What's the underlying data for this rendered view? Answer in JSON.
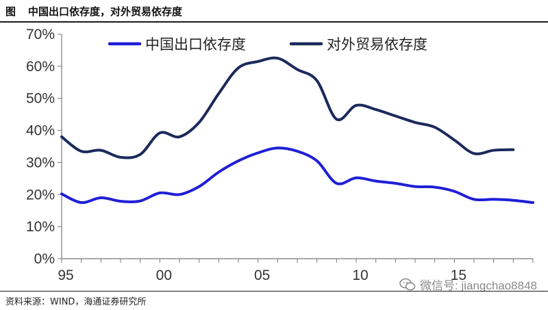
{
  "figure": {
    "label": "图",
    "title": "中国出口依存度，对外贸易依存度"
  },
  "source_text": "资料来源：WIND，海通证券研究所",
  "watermark": {
    "text": "微信号: jiangchao8848",
    "icon": "wechat-icon"
  },
  "colors": {
    "export_dependence": "#1f1fd6",
    "trade_dependence": "#1b2a5c",
    "axis": "#777777"
  },
  "chart_data": {
    "type": "line",
    "title": "",
    "xlabel": "",
    "ylabel": "",
    "x_range": [
      1995,
      2019
    ],
    "ylim": [
      0,
      70
    ],
    "y_ticks": [
      0,
      10,
      20,
      30,
      40,
      50,
      60,
      70
    ],
    "y_tick_labels": [
      "0%",
      "10%",
      "20%",
      "30%",
      "40%",
      "50%",
      "60%",
      "70%"
    ],
    "x_ticks": [
      1995,
      2000,
      2005,
      2010,
      2015
    ],
    "x_tick_labels": [
      "95",
      "00",
      "05",
      "10",
      "15"
    ],
    "grid": false,
    "legend_position": "top-center",
    "series": [
      {
        "name": "中国出口依存度",
        "x": [
          1995,
          1996,
          1997,
          1998,
          1999,
          2000,
          2001,
          2002,
          2003,
          2004,
          2005,
          2006,
          2007,
          2008,
          2009,
          2010,
          2011,
          2012,
          2013,
          2014,
          2015,
          2016,
          2017,
          2018,
          2019
        ],
        "values": [
          20.2,
          17.5,
          19.0,
          17.9,
          18.0,
          20.5,
          20.0,
          22.5,
          27.0,
          30.5,
          33.0,
          34.5,
          33.5,
          30.5,
          23.5,
          25.2,
          24.2,
          23.5,
          22.5,
          22.3,
          21.0,
          18.5,
          18.5,
          18.2,
          17.5
        ]
      },
      {
        "name": "对外贸易依存度",
        "x": [
          1995,
          1996,
          1997,
          1998,
          1999,
          2000,
          2001,
          2002,
          2003,
          2004,
          2005,
          2006,
          2007,
          2008,
          2009,
          2010,
          2011,
          2012,
          2013,
          2014,
          2015,
          2016,
          2017,
          2018
        ],
        "values": [
          38.0,
          33.5,
          33.8,
          31.6,
          32.5,
          39.2,
          38.0,
          42.5,
          51.5,
          59.5,
          61.5,
          62.5,
          59.0,
          55.5,
          43.5,
          47.8,
          46.5,
          44.5,
          42.5,
          41.0,
          37.0,
          32.8,
          33.8,
          34.0
        ]
      }
    ]
  }
}
